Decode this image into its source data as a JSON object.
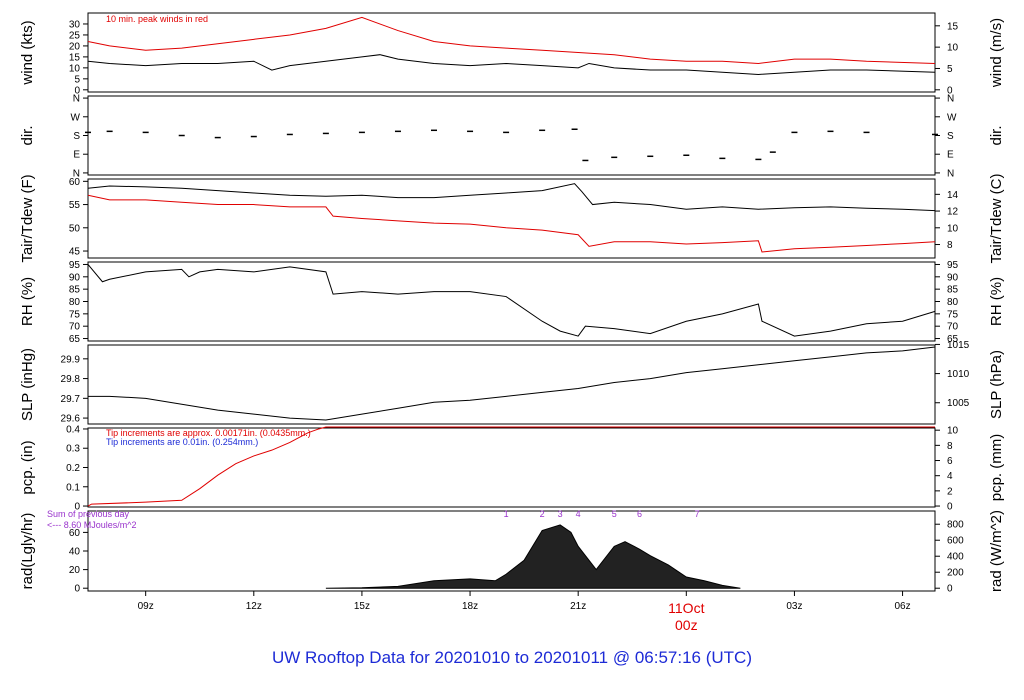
{
  "page_title": "UW Rooftop Data for 20201010  to  20201011 @ 06:57:16  (UTC)",
  "date_marker": {
    "day": "11Oct",
    "hour": "00z"
  },
  "x_ticks": [
    "09z",
    "12z",
    "15z",
    "18z",
    "21z",
    "00z",
    "03z",
    "06z"
  ],
  "colors": {
    "title": "#1d2bd6",
    "red": "#e00000",
    "blue": "#1d2bd6",
    "purple": "#9932cc",
    "black": "#000000"
  },
  "chart_data": [
    {
      "id": "wind",
      "type": "line",
      "ylabel": "wind (kts)",
      "ylabel_right": "wind (m/s)",
      "ylim": [
        -1,
        35
      ],
      "y_ticks": [
        0,
        5,
        10,
        15,
        20,
        25,
        30
      ],
      "right_ticks": [
        0,
        5,
        10,
        15
      ],
      "right_factor": 1.944,
      "annotation": "10 min. peak winds in red",
      "series": [
        {
          "color": "#000000",
          "x": [
            7.4,
            8,
            9,
            10,
            11,
            12,
            12.5,
            13,
            14,
            15,
            15.5,
            16,
            17,
            18,
            19,
            20,
            21,
            21.3,
            22,
            23,
            24,
            25,
            26,
            27,
            28,
            29,
            30.9
          ],
          "values": [
            13,
            12,
            11,
            12,
            12,
            13,
            9,
            11,
            13,
            15,
            16,
            14,
            12,
            11,
            12,
            11,
            10,
            12,
            10,
            9,
            9,
            8,
            7,
            8,
            9,
            9,
            8
          ]
        },
        {
          "color": "#e00000",
          "x": [
            7.4,
            8,
            9,
            10,
            11,
            12,
            13,
            14,
            15,
            16,
            17,
            18,
            19,
            20,
            21,
            22,
            23,
            24,
            25,
            26,
            27,
            28,
            29,
            30.9
          ],
          "values": [
            22,
            20,
            18,
            19,
            21,
            23,
            25,
            28,
            33,
            27,
            22,
            20,
            19,
            18,
            17,
            16,
            14,
            13,
            13,
            12,
            14,
            14,
            13,
            12
          ]
        }
      ]
    },
    {
      "id": "dir",
      "type": "scatter",
      "ylabel": "dir.",
      "ylabel_right": "dir.",
      "ylim": [
        -10,
        370
      ],
      "y_tick_values": [
        0,
        90,
        180,
        270,
        360
      ],
      "y_tick_labels": [
        "N",
        "E",
        "S",
        "W",
        "N"
      ],
      "series": [
        {
          "color": "#000000",
          "x": [
            7.4,
            8,
            9,
            10,
            11,
            12,
            13,
            14,
            15,
            16,
            17,
            18,
            19,
            20,
            20.9,
            21.2,
            22,
            23,
            24,
            25,
            26,
            26.4,
            27,
            28,
            29,
            30.9
          ],
          "values": [
            195,
            200,
            195,
            180,
            170,
            175,
            185,
            190,
            195,
            200,
            205,
            200,
            195,
            205,
            210,
            60,
            75,
            80,
            85,
            70,
            65,
            100,
            195,
            200,
            195,
            185
          ]
        }
      ]
    },
    {
      "id": "temp",
      "type": "line",
      "ylabel": "Tair/Tdew (F)",
      "ylabel_right": "Tair/Tdew (C)",
      "ylim": [
        43.5,
        60.5
      ],
      "y_ticks": [
        45,
        50,
        55,
        60
      ],
      "right_ticks": [
        8,
        10,
        12,
        14
      ],
      "right_offset": 32,
      "right_factor": 1.8,
      "series": [
        {
          "name": "Tair",
          "color": "#000000",
          "x": [
            7.4,
            8,
            9,
            10,
            11,
            12,
            13,
            14,
            15,
            16,
            17,
            18,
            19,
            20,
            20.9,
            21.1,
            21.4,
            22,
            23,
            24,
            25,
            26,
            27,
            28,
            29,
            30,
            30.9
          ],
          "values": [
            58.5,
            59,
            58.8,
            58.5,
            58,
            57.5,
            57,
            56.8,
            57,
            56.5,
            56.5,
            57,
            57.5,
            58,
            59.5,
            57.8,
            55,
            55.5,
            55,
            54,
            54.5,
            54,
            54.3,
            54.5,
            54.2,
            54,
            53.7
          ]
        },
        {
          "name": "Tdew",
          "color": "#e00000",
          "x": [
            7.4,
            8,
            9,
            10,
            11,
            12,
            13,
            14,
            14.2,
            15,
            16,
            17,
            18,
            19,
            20,
            21,
            21.3,
            22,
            23,
            24,
            25,
            26,
            26.1,
            27,
            28,
            29,
            30,
            30.9
          ],
          "values": [
            57,
            56,
            56,
            55.5,
            55,
            55,
            54.5,
            54.5,
            52.5,
            52,
            51.5,
            51,
            50.8,
            50,
            49.5,
            48.5,
            46,
            47,
            47,
            46.5,
            46.8,
            47.2,
            44.8,
            45.5,
            45.8,
            46.2,
            46.6,
            47
          ]
        }
      ]
    },
    {
      "id": "rh",
      "type": "line",
      "ylabel": "RH (%)",
      "ylabel_right": "RH (%)",
      "ylim": [
        64,
        96
      ],
      "y_ticks": [
        65,
        70,
        75,
        80,
        85,
        90,
        95
      ],
      "right_ticks": [
        65,
        70,
        75,
        80,
        85,
        90,
        95
      ],
      "series": [
        {
          "color": "#000000",
          "x": [
            7.4,
            7.8,
            8,
            9,
            10,
            10.2,
            10.5,
            11,
            12,
            13,
            14,
            14.2,
            15,
            16,
            17,
            18,
            19,
            20,
            20.5,
            21,
            21.2,
            22,
            23,
            24,
            25,
            26,
            26.1,
            27,
            28,
            29,
            30,
            30.9
          ],
          "values": [
            95,
            88,
            89,
            92,
            93,
            90,
            92,
            93,
            92,
            94,
            92,
            83,
            84,
            83,
            84,
            84,
            82,
            72,
            68,
            66,
            70,
            69,
            67,
            72,
            75,
            79,
            72,
            66,
            68,
            71,
            72,
            76
          ]
        }
      ]
    },
    {
      "id": "slp",
      "type": "line",
      "ylabel": "SLP (inHg)",
      "ylabel_right": "SLP (hPa)",
      "ylim": [
        29.57,
        29.97
      ],
      "y_ticks": [
        29.6,
        29.7,
        29.8,
        29.9
      ],
      "right_ticks": [
        1005,
        1010,
        1015
      ],
      "right_factor": 33.8639,
      "series": [
        {
          "color": "#000000",
          "x": [
            7.4,
            8,
            9,
            10,
            11,
            12,
            13,
            14,
            15,
            16,
            17,
            18,
            19,
            20,
            21,
            22,
            23,
            24,
            25,
            26,
            27,
            28,
            29,
            30,
            30.9
          ],
          "values": [
            29.71,
            29.71,
            29.7,
            29.67,
            29.64,
            29.62,
            29.6,
            29.59,
            29.62,
            29.65,
            29.68,
            29.69,
            29.71,
            29.73,
            29.75,
            29.78,
            29.8,
            29.83,
            29.85,
            29.87,
            29.89,
            29.91,
            29.93,
            29.94,
            29.96
          ]
        }
      ]
    },
    {
      "id": "pcp",
      "type": "line",
      "ylabel": "pcp. (in)",
      "ylabel_right": "pcp. (mm)",
      "ylim": [
        -0.005,
        0.405
      ],
      "y_ticks": [
        0.0,
        0.1,
        0.2,
        0.3,
        0.4
      ],
      "right_ticks": [
        0,
        2,
        4,
        6,
        8,
        10
      ],
      "right_factor": 25.4,
      "annotation_lines": [
        {
          "text": "Tip increments are approx. 0.00171in. (0.0435mm.)",
          "color": "#e00000"
        },
        {
          "text": "Tip increments are 0.01in. (0.254mm.)",
          "color": "#1d2bd6"
        }
      ],
      "series": [
        {
          "color": "#e00000",
          "x": [
            7.4,
            7.5,
            9,
            10,
            10.5,
            11,
            11.5,
            12,
            12.5,
            13,
            13.5,
            13.8,
            14,
            30.9
          ],
          "values": [
            0,
            0.01,
            0.02,
            0.03,
            0.09,
            0.16,
            0.22,
            0.26,
            0.29,
            0.33,
            0.38,
            0.4,
            0.41,
            0.41
          ]
        }
      ]
    },
    {
      "id": "rad",
      "type": "area",
      "ylabel": "rad(Lgly/hr)",
      "ylabel_right": "rad (W/m^2)",
      "ylim": [
        -3,
        83
      ],
      "y_ticks": [
        0,
        20,
        40,
        60
      ],
      "right_ticks": [
        0,
        200,
        400,
        600,
        800
      ],
      "right_factor": 11.63,
      "annotation": "Sum of previous day",
      "annotation2": "<--- 8.60 MJoules/m^2",
      "markers": [
        {
          "label": "1",
          "x": 19.0
        },
        {
          "label": "2",
          "x": 20.0
        },
        {
          "label": "3",
          "x": 20.5
        },
        {
          "label": "4",
          "x": 21.0
        },
        {
          "label": "5",
          "x": 22.0
        },
        {
          "label": "6",
          "x": 22.7
        },
        {
          "label": "7",
          "x": 24.3
        }
      ],
      "series": [
        {
          "color": "#000000",
          "x": [
            14.0,
            15,
            16,
            17,
            18,
            18.7,
            19,
            19.5,
            20,
            20.5,
            20.8,
            21,
            21.5,
            22,
            22.3,
            22.7,
            23,
            23.5,
            24,
            24.5,
            25,
            25.5
          ],
          "values": [
            0,
            0.5,
            2,
            8,
            10,
            8,
            15,
            30,
            62,
            68,
            60,
            45,
            20,
            45,
            50,
            42,
            35,
            25,
            12,
            8,
            3,
            0
          ]
        }
      ]
    }
  ]
}
